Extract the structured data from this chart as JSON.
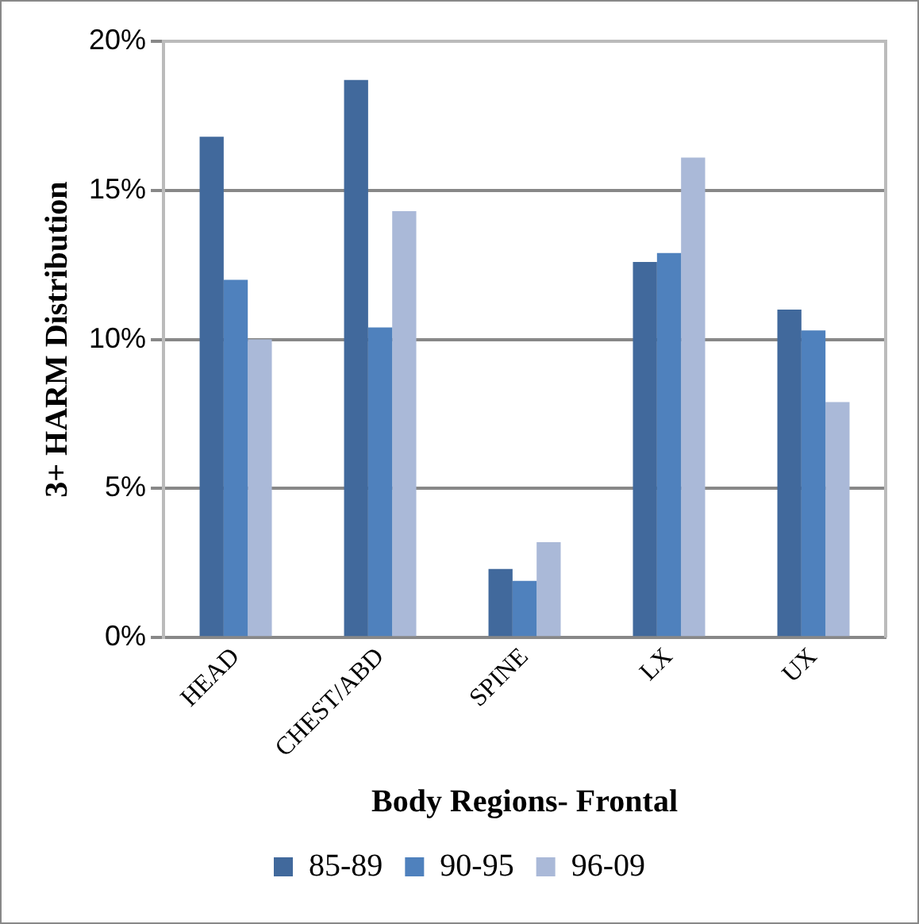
{
  "chart_data": {
    "type": "bar",
    "xlabel": "Body Regions- Frontal",
    "ylabel": "3+ HARM Distribution",
    "categories": [
      "HEAD",
      "CHEST/ABD",
      "SPINE",
      "LX",
      "UX"
    ],
    "series": [
      {
        "name": "85-89",
        "color": "#41699c",
        "values": [
          16.8,
          18.7,
          2.3,
          12.6,
          11.0
        ]
      },
      {
        "name": "90-95",
        "color": "#4f81bd",
        "values": [
          12.0,
          10.4,
          1.9,
          12.9,
          10.3
        ]
      },
      {
        "name": "96-09",
        "color": "#aab9d8",
        "values": [
          10.0,
          14.3,
          3.2,
          16.1,
          7.9
        ]
      }
    ],
    "ylim": [
      0,
      20
    ],
    "yticks": [
      {
        "value": 0,
        "label": "0%"
      },
      {
        "value": 5,
        "label": "5%"
      },
      {
        "value": 10,
        "label": "10%"
      },
      {
        "value": 15,
        "label": "15%"
      },
      {
        "value": 20,
        "label": "20%"
      }
    ],
    "grid": "y",
    "legend": "bottom"
  }
}
